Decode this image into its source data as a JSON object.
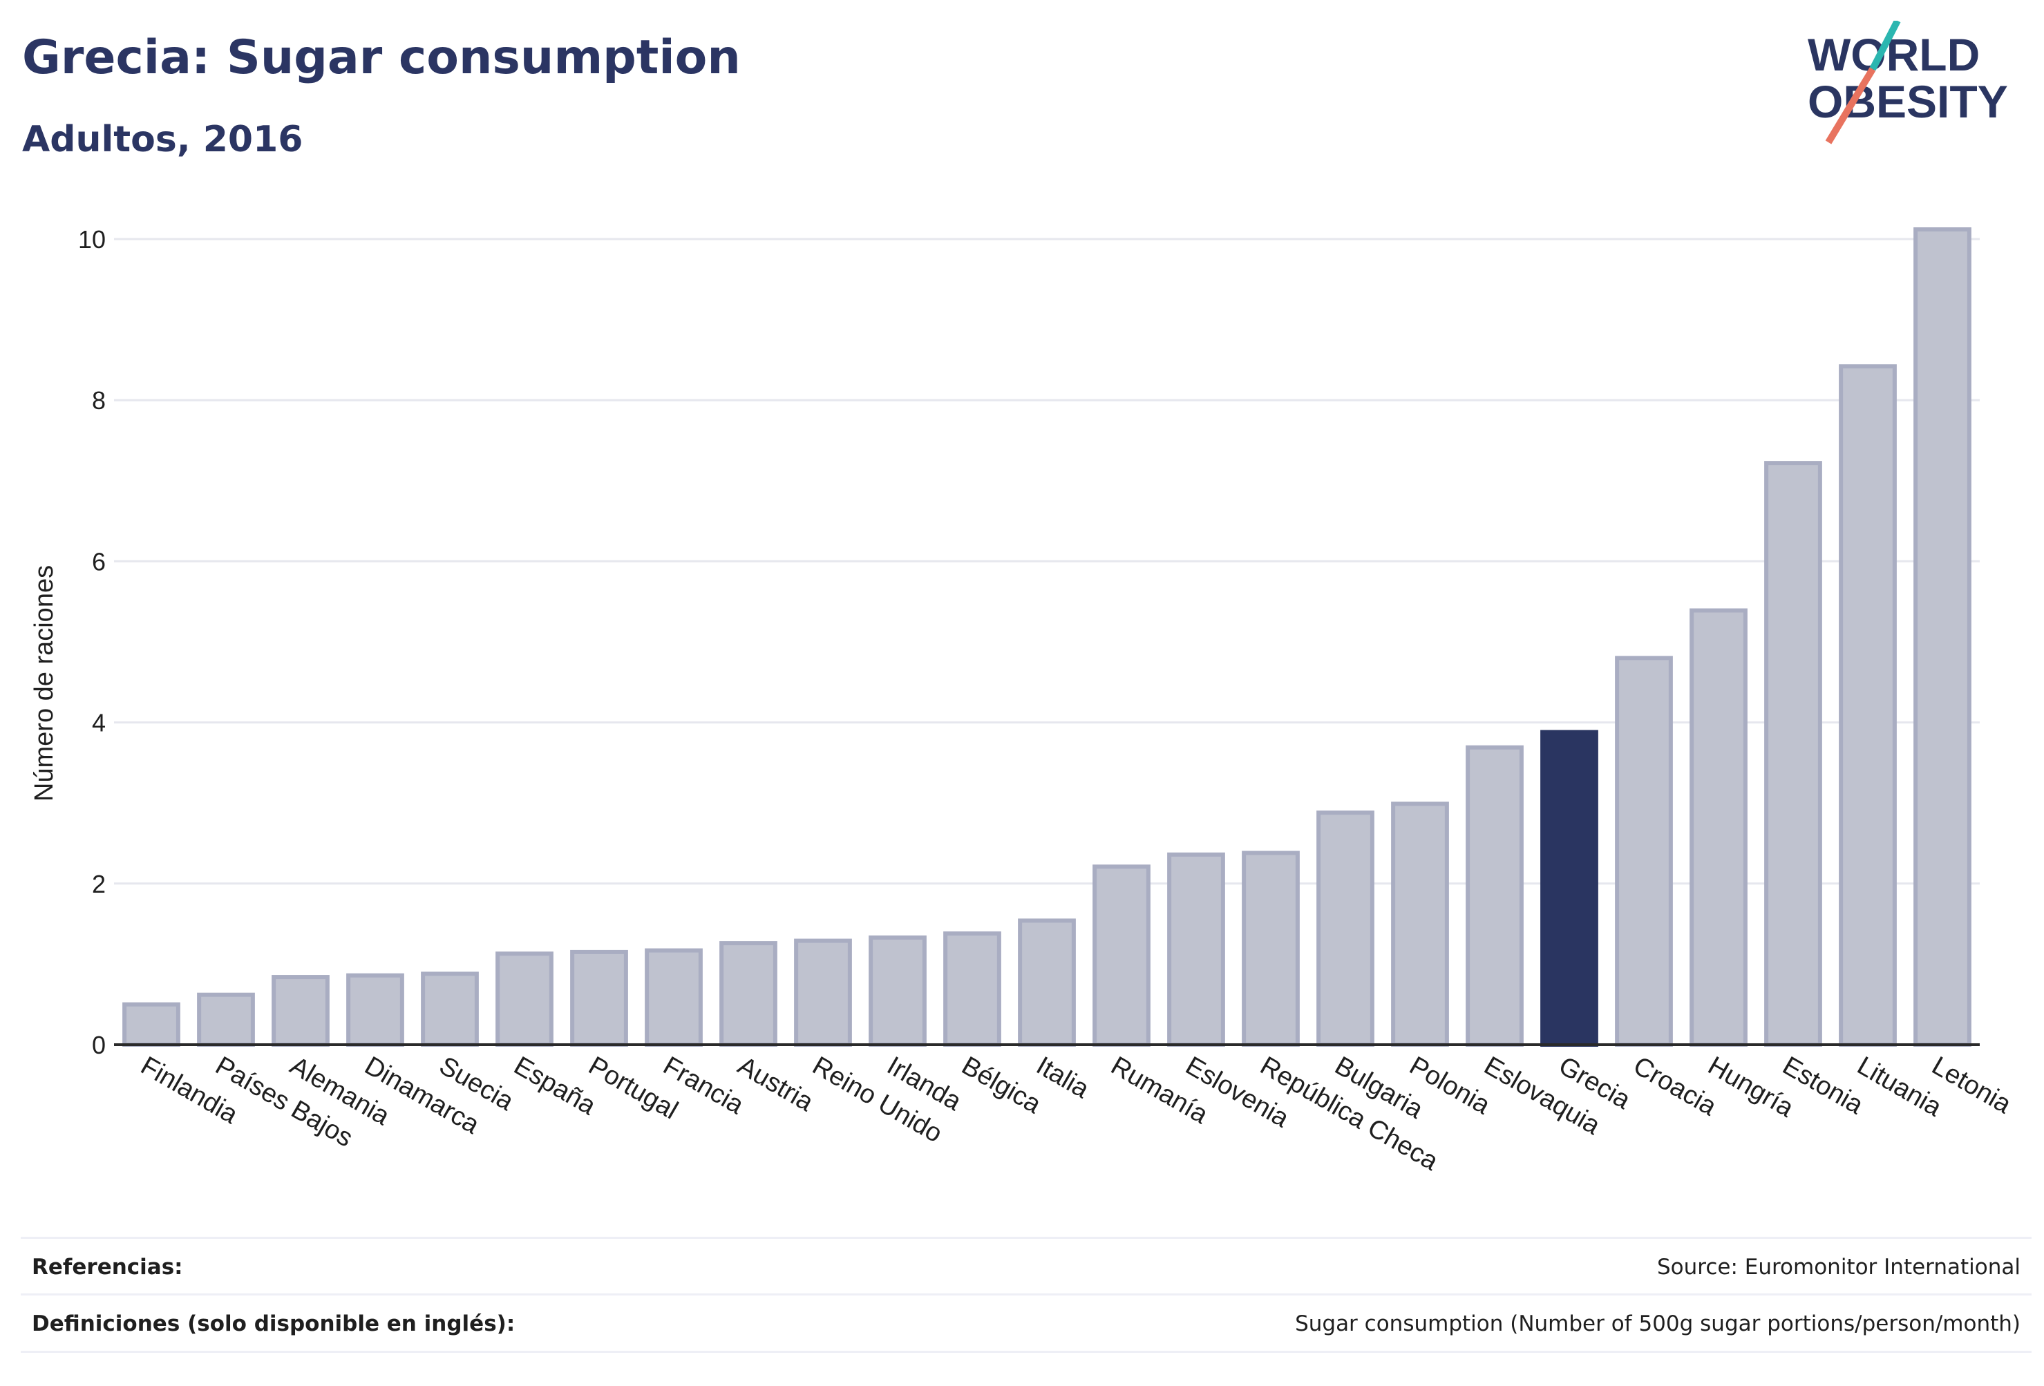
{
  "header": {
    "title": "Grecia: Sugar consumption",
    "subtitle": "Adultos, 2016"
  },
  "logo": {
    "line1": "WORLD",
    "line2": "OBESITY"
  },
  "chart_data": {
    "type": "bar",
    "ylabel": "Número de raciones",
    "xlabel": "",
    "ylim": [
      0,
      10.4
    ],
    "yticks": [
      0,
      2,
      4,
      6,
      8,
      10
    ],
    "grid": true,
    "highlight": "Grecia",
    "categories": [
      "Finlandia",
      "Países Bajos",
      "Alemania",
      "Dinamarca",
      "Suecia",
      "España",
      "Portugal",
      "Francia",
      "Austria",
      "Reino Unido",
      "Irlanda",
      "Bélgica",
      "Italia",
      "Rumanía",
      "Eslovenia",
      "República Checa",
      "Bulgaria",
      "Polonia",
      "Eslovaquia",
      "Grecia",
      "Croacia",
      "Hungría",
      "Estonia",
      "Lituania",
      "Letonia"
    ],
    "values": [
      0.5,
      0.62,
      0.84,
      0.86,
      0.88,
      1.13,
      1.15,
      1.17,
      1.26,
      1.29,
      1.33,
      1.38,
      1.54,
      2.21,
      2.36,
      2.38,
      2.88,
      2.99,
      3.69,
      3.88,
      4.8,
      5.39,
      7.22,
      8.42,
      10.12
    ],
    "colors": {
      "bar_fill": "#bfc2cf",
      "bar_stroke": "#a9adc2",
      "highlight_fill": "#2a3561",
      "axis": "#2a2a2a",
      "grid": "#e6e7ee",
      "text": "#1f1f1f"
    }
  },
  "footer": {
    "references_label": "Referencias:",
    "references_value": "Source: Euromonitor International",
    "definitions_label": "Definiciones (solo disponible en inglés):",
    "definitions_value": "Sugar consumption (Number of 500g sugar portions/person/month)"
  }
}
